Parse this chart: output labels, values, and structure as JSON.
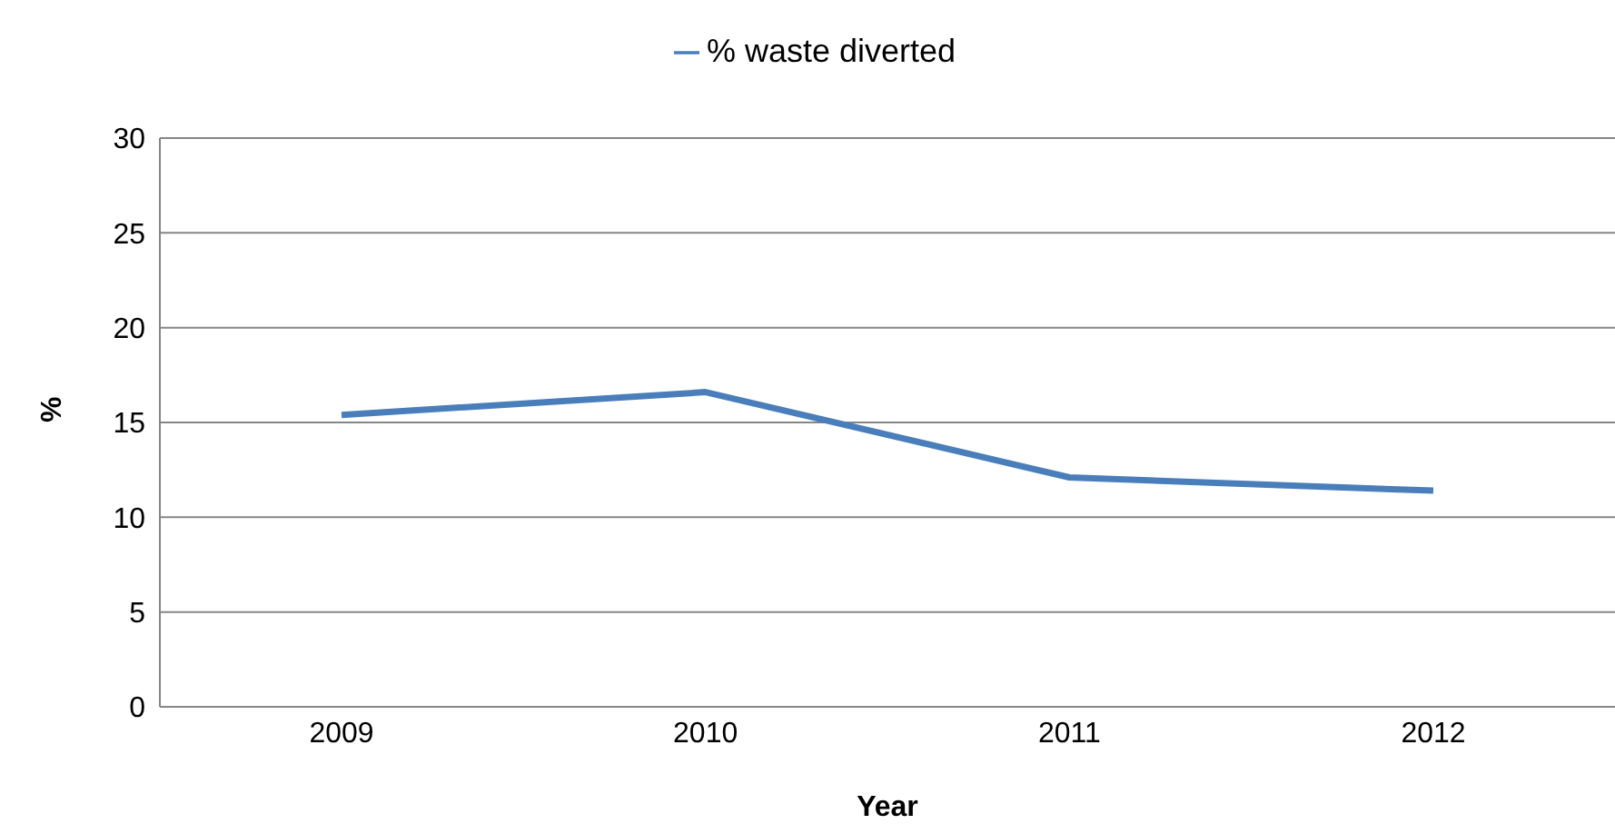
{
  "chart_data": {
    "type": "line",
    "xlabel": "Year",
    "ylabel": "%",
    "categories": [
      "2009",
      "2010",
      "2011",
      "2012"
    ],
    "series": [
      {
        "name": "% waste diverted",
        "color": "#4a7ebb",
        "values": [
          15.4,
          16.6,
          12.1,
          11.4
        ]
      }
    ],
    "ylim": [
      0,
      30
    ],
    "yticks": [
      0,
      5,
      10,
      15,
      20,
      25,
      30
    ],
    "grid": "y",
    "legend": "top",
    "marker": "none",
    "line_style": "solid"
  }
}
